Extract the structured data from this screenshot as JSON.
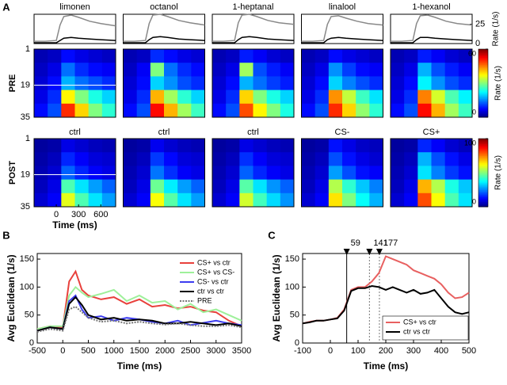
{
  "chart_data": [
    {
      "type": "line",
      "panel": "A",
      "title": "limonen",
      "x": [
        -300,
        -150,
        0,
        50,
        100,
        200,
        300,
        450,
        600,
        800
      ],
      "xlim": [
        -300,
        800
      ],
      "ylim": [
        0,
        38
      ],
      "series": [
        {
          "color": "#888888",
          "values": [
            3,
            3,
            4,
            24,
            35,
            37,
            34,
            29,
            26,
            23
          ]
        },
        {
          "color": "#000000",
          "values": [
            1,
            1,
            1,
            4,
            7,
            8,
            7,
            6,
            5,
            4
          ]
        }
      ]
    },
    {
      "type": "line",
      "title": "octanol",
      "x": [
        -300,
        -150,
        0,
        50,
        100,
        200,
        300,
        450,
        600,
        800
      ],
      "xlim": [
        -300,
        800
      ],
      "ylim": [
        0,
        38
      ],
      "series": [
        {
          "color": "#888888",
          "values": [
            3,
            3,
            4,
            26,
            37,
            38,
            35,
            30,
            27,
            24
          ]
        },
        {
          "color": "#000000",
          "values": [
            1,
            1,
            1,
            5,
            8,
            9,
            8,
            6,
            5,
            4
          ]
        }
      ]
    },
    {
      "type": "line",
      "title": "1-heptanal",
      "x": [
        -300,
        -150,
        0,
        50,
        100,
        200,
        300,
        450,
        600,
        800
      ],
      "xlim": [
        -300,
        800
      ],
      "ylim": [
        0,
        38
      ],
      "series": [
        {
          "color": "#888888",
          "values": [
            3,
            3,
            4,
            27,
            37,
            38,
            35,
            30,
            27,
            25
          ]
        },
        {
          "color": "#000000",
          "values": [
            1,
            1,
            1,
            5,
            8,
            9,
            8,
            6,
            5,
            4
          ]
        }
      ]
    },
    {
      "type": "line",
      "title": "linalool",
      "x": [
        -300,
        -150,
        0,
        50,
        100,
        200,
        300,
        450,
        600,
        800
      ],
      "xlim": [
        -300,
        800
      ],
      "ylim": [
        0,
        38
      ],
      "series": [
        {
          "color": "#888888",
          "values": [
            3,
            3,
            4,
            25,
            35,
            36,
            33,
            29,
            26,
            24
          ]
        },
        {
          "color": "#000000",
          "values": [
            1,
            1,
            1,
            5,
            7,
            8,
            7,
            6,
            5,
            4
          ]
        }
      ]
    },
    {
      "type": "line",
      "title": "1-hexanol",
      "x": [
        -300,
        -150,
        0,
        50,
        100,
        200,
        300,
        450,
        600,
        800
      ],
      "xlim": [
        -300,
        800
      ],
      "ylim": [
        0,
        38
      ],
      "yticks": [
        0,
        25
      ],
      "ylabel": "Rate (1/s)",
      "series": [
        {
          "color": "#888888",
          "values": [
            3,
            3,
            4,
            26,
            36,
            37,
            34,
            29,
            26,
            24
          ]
        },
        {
          "color": "#000000",
          "values": [
            1,
            1,
            1,
            5,
            8,
            8,
            7,
            6,
            5,
            4
          ]
        }
      ]
    },
    {
      "type": "heatmap",
      "ylabel": "PRE",
      "ylim": [
        1,
        35
      ],
      "yticks": [
        1,
        19,
        35
      ],
      "xlim": [
        -300,
        800
      ],
      "zlim": [
        0,
        60
      ],
      "values": [
        [
          3,
          4,
          8,
          6,
          5,
          4
        ],
        [
          4,
          6,
          14,
          10,
          8,
          7
        ],
        [
          5,
          8,
          18,
          14,
          12,
          10
        ],
        [
          6,
          10,
          38,
          30,
          24,
          20
        ],
        [
          8,
          12,
          50,
          40,
          30,
          25
        ]
      ]
    },
    {
      "type": "heatmap",
      "ylim": [
        1,
        35
      ],
      "xlim": [
        -300,
        800
      ],
      "zlim": [
        0,
        60
      ],
      "values": [
        [
          3,
          4,
          10,
          8,
          6,
          5
        ],
        [
          4,
          7,
          30,
          14,
          10,
          8
        ],
        [
          5,
          8,
          20,
          16,
          12,
          10
        ],
        [
          6,
          10,
          42,
          32,
          25,
          20
        ],
        [
          8,
          12,
          52,
          42,
          32,
          26
        ]
      ]
    },
    {
      "type": "heatmap",
      "ylim": [
        1,
        35
      ],
      "xlim": [
        -300,
        800
      ],
      "zlim": [
        0,
        60
      ],
      "values": [
        [
          3,
          4,
          9,
          7,
          5,
          4
        ],
        [
          4,
          6,
          32,
          12,
          9,
          7
        ],
        [
          5,
          8,
          18,
          14,
          11,
          9
        ],
        [
          6,
          10,
          40,
          30,
          24,
          20
        ],
        [
          8,
          12,
          48,
          38,
          30,
          24
        ]
      ]
    },
    {
      "type": "heatmap",
      "ylim": [
        1,
        35
      ],
      "xlim": [
        -300,
        800
      ],
      "zlim": [
        0,
        60
      ],
      "values": [
        [
          3,
          4,
          8,
          6,
          5,
          4
        ],
        [
          4,
          6,
          16,
          11,
          8,
          7
        ],
        [
          5,
          8,
          20,
          15,
          12,
          10
        ],
        [
          6,
          10,
          44,
          34,
          26,
          21
        ],
        [
          8,
          12,
          50,
          40,
          31,
          25
        ]
      ]
    },
    {
      "type": "heatmap",
      "ylim": [
        1,
        35
      ],
      "xlim": [
        -300,
        800
      ],
      "zlim": [
        0,
        60
      ],
      "zticks": [
        0,
        60
      ],
      "zlabel": "Rate (1/s)",
      "values": [
        [
          3,
          4,
          9,
          7,
          5,
          4
        ],
        [
          4,
          6,
          18,
          12,
          9,
          7
        ],
        [
          5,
          8,
          22,
          16,
          12,
          10
        ],
        [
          6,
          10,
          45,
          35,
          27,
          22
        ],
        [
          8,
          12,
          52,
          42,
          32,
          26
        ]
      ]
    },
    {
      "type": "heatmap",
      "title": "ctrl",
      "ylabel": "POST",
      "ylim": [
        1,
        35
      ],
      "yticks": [
        1,
        19,
        35
      ],
      "xlim": [
        -300,
        800
      ],
      "xticks": [
        0,
        300,
        600
      ],
      "xlabel": "Time (ms)",
      "zlim": [
        0,
        100
      ],
      "values": [
        [
          3,
          4,
          10,
          8,
          6,
          5
        ],
        [
          4,
          6,
          16,
          12,
          9,
          8
        ],
        [
          5,
          8,
          22,
          16,
          12,
          10
        ],
        [
          6,
          10,
          45,
          35,
          28,
          22
        ],
        [
          8,
          12,
          60,
          45,
          35,
          28
        ]
      ]
    },
    {
      "type": "heatmap",
      "title": "ctrl",
      "ylim": [
        1,
        35
      ],
      "xlim": [
        -300,
        800
      ],
      "zlim": [
        0,
        100
      ],
      "values": [
        [
          3,
          4,
          11,
          8,
          6,
          5
        ],
        [
          4,
          6,
          18,
          13,
          9,
          8
        ],
        [
          5,
          8,
          24,
          17,
          12,
          10
        ],
        [
          6,
          10,
          48,
          36,
          28,
          22
        ],
        [
          8,
          12,
          62,
          46,
          35,
          28
        ]
      ]
    },
    {
      "type": "heatmap",
      "title": "ctrl",
      "ylim": [
        1,
        35
      ],
      "xlim": [
        -300,
        800
      ],
      "zlim": [
        0,
        100
      ],
      "values": [
        [
          3,
          4,
          10,
          8,
          6,
          5
        ],
        [
          4,
          6,
          17,
          12,
          9,
          8
        ],
        [
          5,
          8,
          22,
          16,
          12,
          10
        ],
        [
          6,
          10,
          46,
          35,
          27,
          22
        ],
        [
          8,
          12,
          58,
          44,
          34,
          27
        ]
      ]
    },
    {
      "type": "heatmap",
      "title": "CS-",
      "ylim": [
        1,
        35
      ],
      "xlim": [
        -300,
        800
      ],
      "zlim": [
        0,
        100
      ],
      "values": [
        [
          3,
          4,
          14,
          10,
          7,
          6
        ],
        [
          4,
          6,
          20,
          14,
          10,
          8
        ],
        [
          5,
          8,
          28,
          20,
          14,
          12
        ],
        [
          6,
          10,
          55,
          42,
          32,
          25
        ],
        [
          8,
          12,
          65,
          50,
          38,
          30
        ]
      ]
    },
    {
      "type": "heatmap",
      "title": "CS+",
      "ylim": [
        1,
        35
      ],
      "xlim": [
        -300,
        800
      ],
      "zlim": [
        0,
        100
      ],
      "zticks": [
        0,
        100
      ],
      "zlabel": "Rate (1/s)",
      "values": [
        [
          3,
          4,
          16,
          12,
          8,
          6
        ],
        [
          4,
          6,
          30,
          20,
          14,
          10
        ],
        [
          5,
          8,
          35,
          25,
          18,
          14
        ],
        [
          6,
          10,
          70,
          55,
          40,
          32
        ],
        [
          8,
          12,
          80,
          62,
          45,
          35
        ]
      ]
    },
    {
      "type": "line",
      "panel": "B",
      "xlabel": "Time (ms)",
      "ylabel": "Avg Euclidean (1/s)",
      "xlim": [
        -500,
        3500
      ],
      "xticks": [
        -500,
        0,
        500,
        1000,
        1500,
        2000,
        2500,
        3000,
        3500
      ],
      "ylim": [
        0,
        160
      ],
      "yticks": [
        0,
        50,
        100,
        150
      ],
      "legend": "upper right",
      "x": [
        -500,
        -250,
        0,
        125,
        250,
        375,
        500,
        750,
        1000,
        1250,
        1500,
        1750,
        2000,
        2250,
        2500,
        2750,
        3000,
        3250,
        3500
      ],
      "series": [
        {
          "name": "CS+ vs ctr",
          "color": "#e8413c",
          "values": [
            25,
            30,
            28,
            110,
            128,
            95,
            85,
            78,
            82,
            70,
            78,
            65,
            68,
            62,
            65,
            58,
            55,
            40,
            30
          ]
        },
        {
          "name": "CS+ vs CS-",
          "color": "#9ef09a",
          "values": [
            25,
            30,
            30,
            85,
            100,
            90,
            82,
            88,
            95,
            75,
            85,
            72,
            75,
            60,
            70,
            55,
            60,
            50,
            40
          ]
        },
        {
          "name": "CS- vs ctr",
          "color": "#3c3cf0",
          "values": [
            22,
            28,
            25,
            75,
            85,
            60,
            45,
            48,
            40,
            45,
            42,
            38,
            35,
            40,
            32,
            36,
            40,
            35,
            32
          ]
        },
        {
          "name": "ctr vs ctr",
          "color": "#000000",
          "values": [
            22,
            28,
            25,
            70,
            82,
            68,
            50,
            42,
            45,
            40,
            42,
            40,
            35,
            35,
            38,
            35,
            32,
            35,
            30
          ]
        },
        {
          "name": "PRE",
          "color": "#777777",
          "dash": true,
          "values": [
            20,
            25,
            22,
            60,
            65,
            55,
            45,
            38,
            40,
            35,
            38,
            35,
            33,
            35,
            32,
            30,
            30,
            32,
            28
          ]
        }
      ]
    },
    {
      "type": "line",
      "panel": "C",
      "xlabel": "Time (ms)",
      "ylabel": "Avg Euclidean (1/s)",
      "xlim": [
        -100,
        500
      ],
      "xticks": [
        -100,
        0,
        100,
        200,
        300,
        400,
        500
      ],
      "ylim": [
        0,
        160
      ],
      "yticks": [
        0,
        50,
        100,
        150
      ],
      "legend": "lower right",
      "markers": [
        59,
        141,
        177
      ],
      "x": [
        -100,
        -75,
        -50,
        -25,
        0,
        25,
        50,
        75,
        100,
        125,
        150,
        175,
        200,
        225,
        250,
        275,
        300,
        325,
        350,
        375,
        400,
        425,
        450,
        475,
        500
      ],
      "series": [
        {
          "name": "CS+ vs ctr",
          "color": "#e86060",
          "values": [
            35,
            38,
            40,
            40,
            42,
            45,
            60,
            95,
            100,
            100,
            110,
            125,
            155,
            150,
            145,
            140,
            130,
            125,
            120,
            115,
            105,
            90,
            80,
            82,
            90
          ]
        },
        {
          "name": "ctr vs ctr",
          "color": "#000000",
          "values": [
            35,
            37,
            40,
            40,
            42,
            44,
            58,
            93,
            98,
            98,
            102,
            100,
            95,
            100,
            95,
            90,
            95,
            88,
            90,
            95,
            80,
            65,
            55,
            52,
            55
          ]
        }
      ]
    }
  ]
}
